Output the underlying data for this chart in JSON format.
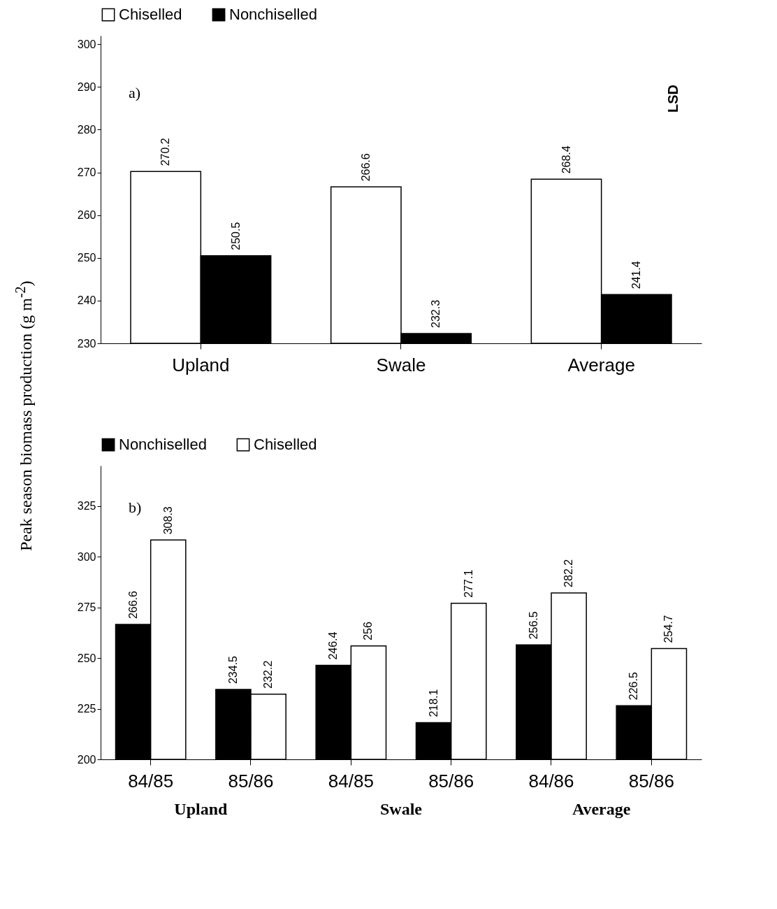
{
  "chart_data": [
    {
      "type": "bar",
      "ylabel": "Peak season biomass production (g m$^{-2}$)",
      "categories": [
        "Upland",
        "Swale",
        "Average"
      ],
      "series": [
        {
          "name": "Chiselled",
          "color": "#ffffff",
          "values": [
            270.2,
            266.6,
            268.4
          ]
        },
        {
          "name": "Nonchiselled",
          "color": "#000000",
          "values": [
            250.5,
            232.3,
            241.4
          ]
        }
      ],
      "ylim": [
        230,
        302
      ],
      "yticks": [
        230,
        240,
        250,
        260,
        270,
        280,
        290,
        300
      ],
      "data_labels": true,
      "legend": "top",
      "grid": false,
      "annotations": [
        "a)",
        "LSD"
      ]
    },
    {
      "type": "bar",
      "categories": [
        "84/85",
        "85/86",
        "84/85",
        "85/86",
        "84/86",
        "85/86"
      ],
      "series": [
        {
          "name": "Nonchiselled",
          "color": "#000000",
          "values": [
            266.6,
            234.5,
            246.4,
            218.1,
            256.5,
            226.5
          ]
        },
        {
          "name": "Chiselled",
          "color": "#ffffff",
          "values": [
            308.3,
            232.2,
            256,
            277.1,
            282.2,
            254.7
          ]
        }
      ],
      "ylim": [
        200,
        345
      ],
      "yticks": [
        200,
        225,
        250,
        275,
        300,
        325
      ],
      "data_labels": true,
      "legend": "top",
      "grid": false,
      "annotations": [
        "b)",
        "Upland",
        "Swale",
        "Average"
      ]
    }
  ]
}
